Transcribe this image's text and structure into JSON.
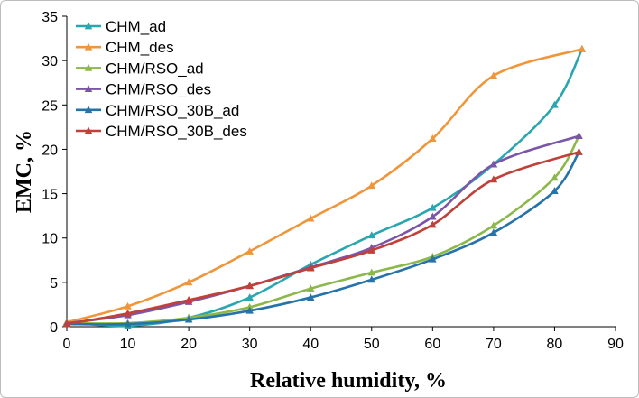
{
  "chart_data": {
    "type": "line",
    "title": "",
    "xlabel": "Relative humidity, %",
    "ylabel": "EMC, %",
    "xlim": [
      0,
      90
    ],
    "ylim": [
      0,
      35
    ],
    "xticks": [
      0,
      10,
      20,
      30,
      40,
      50,
      60,
      70,
      80,
      90
    ],
    "yticks": [
      0,
      5,
      10,
      15,
      20,
      25,
      30,
      35
    ],
    "grid": false,
    "legend_position": "top-left",
    "series": [
      {
        "name": "CHM_ad",
        "color": "#2aa6b0",
        "x": [
          0,
          10,
          20,
          30,
          40,
          50,
          60,
          70,
          80,
          84.5
        ],
        "y": [
          0.5,
          0.1,
          1.0,
          3.3,
          7.0,
          10.3,
          13.4,
          18.3,
          25.0,
          31.3
        ]
      },
      {
        "name": "CHM_des",
        "color": "#f0963a",
        "x": [
          0,
          10,
          20,
          30,
          40,
          50,
          60,
          70,
          84.5
        ],
        "y": [
          0.5,
          2.3,
          5.0,
          8.5,
          12.2,
          15.9,
          21.2,
          28.3,
          31.3
        ]
      },
      {
        "name": "CHM/RSO_ad",
        "color": "#8cb84a",
        "x": [
          0,
          10,
          20,
          30,
          40,
          50,
          60,
          70,
          80,
          84
        ],
        "y": [
          0.4,
          0.4,
          1.0,
          2.2,
          4.3,
          6.1,
          7.9,
          11.4,
          16.8,
          21.5
        ]
      },
      {
        "name": "CHM/RSO_des",
        "color": "#7b56a8",
        "x": [
          0,
          10,
          20,
          30,
          40,
          50,
          60,
          70,
          84
        ],
        "y": [
          0.4,
          1.3,
          2.8,
          4.6,
          6.7,
          8.9,
          12.4,
          18.3,
          21.5
        ]
      },
      {
        "name": "CHM/RSO_30B_ad",
        "color": "#2573a8",
        "x": [
          0,
          10,
          20,
          30,
          40,
          50,
          60,
          70,
          80,
          84
        ],
        "y": [
          0.3,
          0.3,
          0.8,
          1.8,
          3.3,
          5.3,
          7.6,
          10.6,
          15.3,
          19.7
        ]
      },
      {
        "name": "CHM/RSO_30B_des",
        "color": "#c0403a",
        "x": [
          0,
          10,
          20,
          30,
          40,
          50,
          60,
          70,
          84
        ],
        "y": [
          0.3,
          1.5,
          3.0,
          4.6,
          6.6,
          8.6,
          11.5,
          16.6,
          19.7
        ]
      }
    ]
  }
}
